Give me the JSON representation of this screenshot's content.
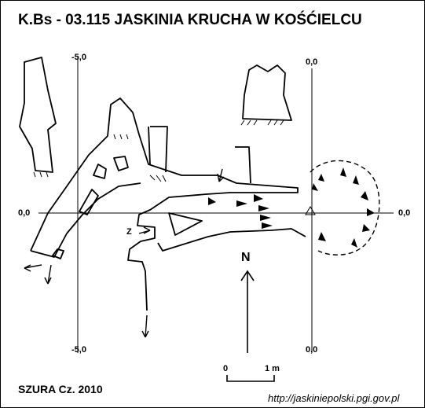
{
  "title": "K.Bs - 03.115 JASKINIA KRUCHA W KOŚĆIELCU",
  "coordinates": {
    "left_top": "-5,0",
    "left_bottom": "-5,0",
    "left_middle": "0,0",
    "right_top": "0,0",
    "right_bottom": "0,0",
    "right_middle": "0,0"
  },
  "marker_letter": "Z",
  "north_label": "N",
  "scale": {
    "start": "0",
    "end": "1 m"
  },
  "author": "SZURA Cz. 2010",
  "url": "http://jaskiniepolski.pgi.gov.pl"
}
